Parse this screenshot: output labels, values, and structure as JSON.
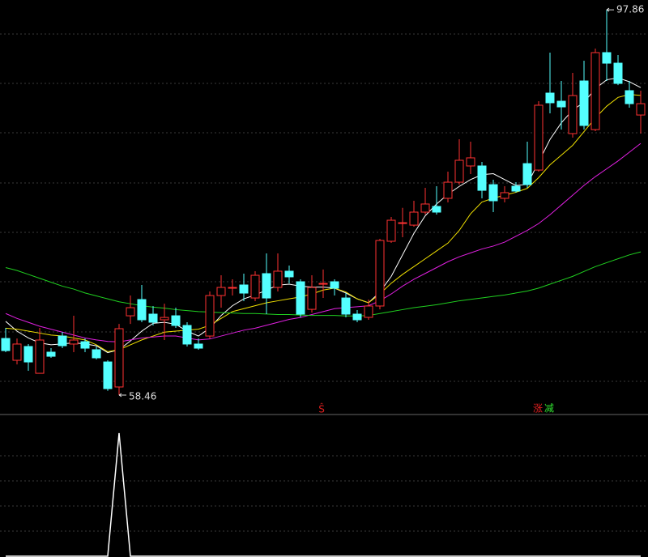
{
  "chart_data": [
    {
      "type": "candlestick",
      "up_color": "#ff3232",
      "down_color": "#54ffff",
      "ylim": [
        56.64,
        98.86
      ],
      "max_price": 97.86,
      "min_price": 58.46,
      "open": [
        64.25,
        62.02,
        63.43,
        60.69,
        62.85,
        64.5,
        63.68,
        63.92,
        63.1,
        61.85,
        59.29,
        66.57,
        68.23,
        66.74,
        66.16,
        66.57,
        65.58,
        63.68,
        64.5,
        68.64,
        69.47,
        69.72,
        68.39,
        70.88,
        69.47,
        71.13,
        70.05,
        67.23,
        69.88,
        70.05,
        68.39,
        66.74,
        66.41,
        67.57,
        74.19,
        76.09,
        75.84,
        77.17,
        77.75,
        78.58,
        80.23,
        81.89,
        81.89,
        79.98,
        78.58,
        79.82,
        82.13,
        81.47,
        89.34,
        88.51,
        85.2,
        90.58,
        85.61,
        93.48,
        92.4,
        89.59,
        87.1
      ],
      "high": [
        65.33,
        64.25,
        63.68,
        65.33,
        63.26,
        64.92,
        66.57,
        64.25,
        63.43,
        62.02,
        65.74,
        68.64,
        69.72,
        67.57,
        67.81,
        67.4,
        65.91,
        64.25,
        69.06,
        70.71,
        70.3,
        70.88,
        71.13,
        72.95,
        72.95,
        71.71,
        70.3,
        70.71,
        71.3,
        70.3,
        68.89,
        67.15,
        68.23,
        74.44,
        76.67,
        77.6,
        78.33,
        79.65,
        79.82,
        81.31,
        84.62,
        84.37,
        82.3,
        80.48,
        79.82,
        80.23,
        84.37,
        88.51,
        93.48,
        90.58,
        91.41,
        92.65,
        93.89,
        97.86,
        93.23,
        90.58,
        89.59
      ],
      "low": [
        62.85,
        61.6,
        60.94,
        60.78,
        62.27,
        63.26,
        62.85,
        62.85,
        62.1,
        58.9,
        58.46,
        65.74,
        65.91,
        65.58,
        64.09,
        65.33,
        63.43,
        63.1,
        64.25,
        67.4,
        68.64,
        68.06,
        68.06,
        66.74,
        69.06,
        69.88,
        66.41,
        66.9,
        68.4,
        68.64,
        66.41,
        65.91,
        66.16,
        67.23,
        74.02,
        74.6,
        75.68,
        76.92,
        76.92,
        78.16,
        79.98,
        81.06,
        78.58,
        77.17,
        78.16,
        79.16,
        79.65,
        81.31,
        87.27,
        85.61,
        84.79,
        85.61,
        85.45,
        90.58,
        90.16,
        87.85,
        85.2
      ],
      "close": [
        63.01,
        63.68,
        61.85,
        64.09,
        62.43,
        63.51,
        64.09,
        63.26,
        62.27,
        59.12,
        65.25,
        67.4,
        66.16,
        65.91,
        66.4,
        65.58,
        63.68,
        63.26,
        68.64,
        69.47,
        69.47,
        68.89,
        70.71,
        68.39,
        71.13,
        70.55,
        66.74,
        69.47,
        69.88,
        69.39,
        66.74,
        66.16,
        67.57,
        74.27,
        76.34,
        76.09,
        77.17,
        78.0,
        77.17,
        80.23,
        82.47,
        82.72,
        79.4,
        78.33,
        79.16,
        79.32,
        79.98,
        88.1,
        88.35,
        87.93,
        89.09,
        86.03,
        93.48,
        92.4,
        90.33,
        88.26,
        88.26
      ],
      "series": [
        {
          "color": "#ffffff",
          "values": [
            66.0,
            65.0,
            64.3,
            63.8,
            63.6,
            63.7,
            63.8,
            63.7,
            63.5,
            62.8,
            63.1,
            64.0,
            65.0,
            65.8,
            65.9,
            65.7,
            65.0,
            64.5,
            65.3,
            66.6,
            67.6,
            68.3,
            68.7,
            69.2,
            69.7,
            69.8,
            69.6,
            69.5,
            69.5,
            69.4,
            68.9,
            68.3,
            67.9,
            69.0,
            70.6,
            72.8,
            75.0,
            76.8,
            78.0,
            79.0,
            79.8,
            80.5,
            81.0,
            81.1,
            80.5,
            79.9,
            80.0,
            82.3,
            84.6,
            86.3,
            87.6,
            88.4,
            89.8,
            90.7,
            90.9,
            90.5,
            89.9
          ]
        },
        {
          "color": "#f0e000",
          "values": [
            65.3,
            65.2,
            65.0,
            64.8,
            64.6,
            64.5,
            64.3,
            64.1,
            63.6,
            62.9,
            63.1,
            63.6,
            64.1,
            64.5,
            64.9,
            65.0,
            65.1,
            65.2,
            65.6,
            66.3,
            67.0,
            67.3,
            67.6,
            67.9,
            68.1,
            68.3,
            68.5,
            68.8,
            69.2,
            69.4,
            69.0,
            68.3,
            67.9,
            68.8,
            69.9,
            70.8,
            71.6,
            72.4,
            73.2,
            74.0,
            75.3,
            77.0,
            78.2,
            78.6,
            78.9,
            79.2,
            79.6,
            80.7,
            82.0,
            83.0,
            84.0,
            85.4,
            86.8,
            88.0,
            88.9,
            89.2,
            89.1
          ]
        },
        {
          "color": "#e020e0",
          "values": [
            66.8,
            66.3,
            65.9,
            65.5,
            65.2,
            64.9,
            64.6,
            64.3,
            64.1,
            63.95,
            63.9,
            64.1,
            64.3,
            64.4,
            64.5,
            64.5,
            64.3,
            64.1,
            64.2,
            64.5,
            64.8,
            65.1,
            65.3,
            65.6,
            65.9,
            66.2,
            66.4,
            66.7,
            67.0,
            67.3,
            67.4,
            67.5,
            67.6,
            68.1,
            68.8,
            69.6,
            70.3,
            70.9,
            71.5,
            72.1,
            72.6,
            73.0,
            73.4,
            73.7,
            74.1,
            74.7,
            75.3,
            76.0,
            76.9,
            77.9,
            78.9,
            79.9,
            80.8,
            81.6,
            82.4,
            83.3,
            84.2
          ]
        },
        {
          "color": "#20d020",
          "values": [
            71.5,
            71.2,
            70.8,
            70.4,
            70.0,
            69.6,
            69.3,
            68.9,
            68.6,
            68.3,
            68.0,
            67.8,
            67.6,
            67.45,
            67.35,
            67.2,
            67.1,
            67.0,
            66.95,
            66.9,
            66.85,
            66.8,
            66.8,
            66.75,
            66.7,
            66.7,
            66.65,
            66.6,
            66.6,
            66.6,
            66.55,
            66.55,
            66.6,
            66.8,
            67.0,
            67.2,
            67.4,
            67.55,
            67.7,
            67.9,
            68.1,
            68.25,
            68.4,
            68.55,
            68.7,
            68.9,
            69.1,
            69.4,
            69.8,
            70.2,
            70.6,
            71.1,
            71.6,
            72.0,
            72.4,
            72.8,
            73.1
          ]
        }
      ],
      "signals": [
        "Ŝ",
        "涨",
        "减"
      ]
    },
    {
      "type": "line",
      "color": "#ffffff",
      "ylim": [
        0,
        1
      ],
      "values": [
        0,
        0,
        0,
        0,
        0,
        0,
        0,
        0,
        0,
        0,
        1,
        0,
        0,
        0,
        0,
        0,
        0,
        0,
        0,
        0,
        0,
        0,
        0,
        0,
        0,
        0,
        0,
        0,
        0,
        0,
        0,
        0,
        0,
        0,
        0,
        0,
        0,
        0,
        0,
        0,
        0,
        0,
        0,
        0,
        0,
        0,
        0,
        0,
        0,
        0,
        0,
        0,
        0,
        0,
        0,
        0,
        0
      ]
    }
  ]
}
